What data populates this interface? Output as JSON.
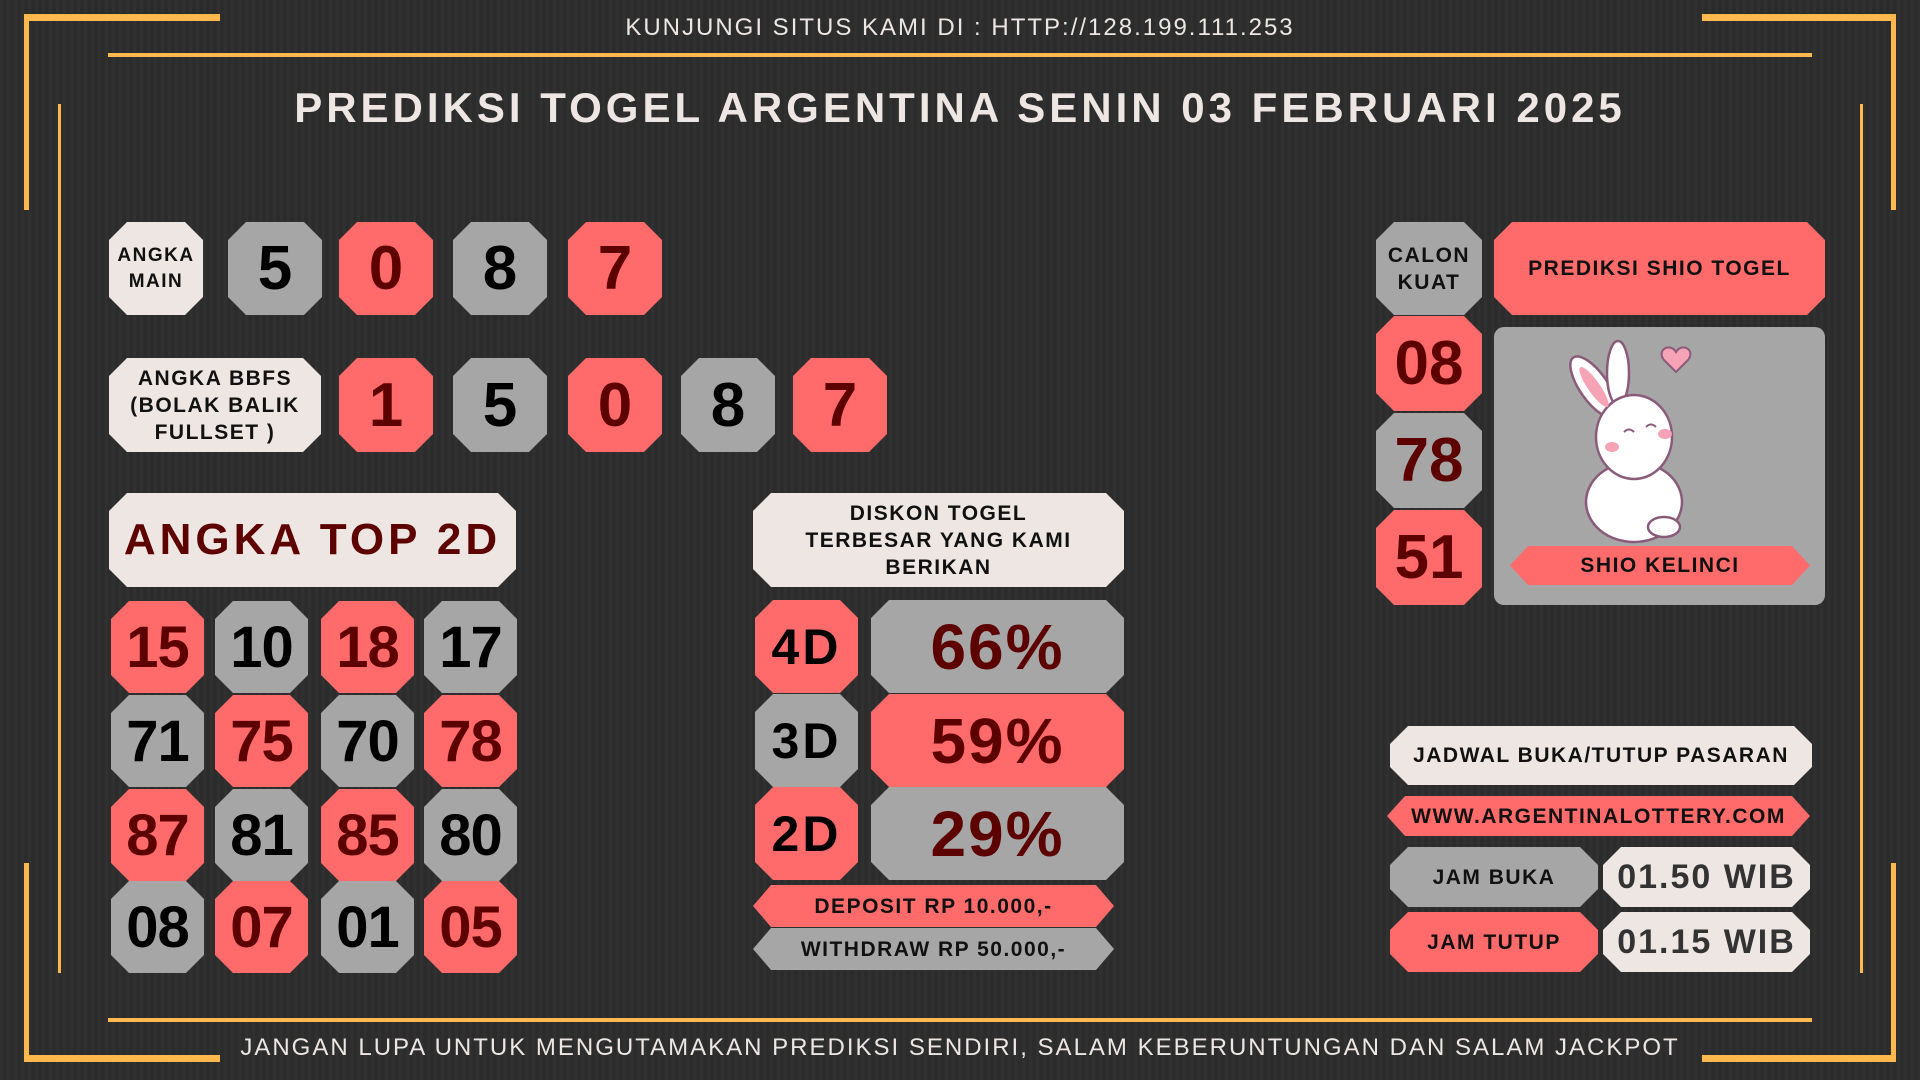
{
  "header": {
    "visit_text": "KUNJUNGI SITUS KAMI DI : HTTP://128.199.111.253",
    "title": "PREDIKSI TOGEL ARGENTINA SENIN 03 FEBRUARI 2025"
  },
  "angka_main": {
    "label": "ANGKA MAIN",
    "numbers": [
      {
        "value": "5",
        "color": "gray"
      },
      {
        "value": "0",
        "color": "red"
      },
      {
        "value": "8",
        "color": "gray"
      },
      {
        "value": "7",
        "color": "red"
      }
    ]
  },
  "angka_bbfs": {
    "label": "ANGKA BBFS (BOLAK BALIK FULLSET )",
    "numbers": [
      {
        "value": "1",
        "color": "red"
      },
      {
        "value": "5",
        "color": "gray"
      },
      {
        "value": "0",
        "color": "red"
      },
      {
        "value": "8",
        "color": "gray"
      },
      {
        "value": "7",
        "color": "red"
      }
    ]
  },
  "top_2d": {
    "title": "ANGKA TOP 2D",
    "rows": [
      [
        {
          "value": "15",
          "color": "red"
        },
        {
          "value": "10",
          "color": "gray"
        },
        {
          "value": "18",
          "color": "red"
        },
        {
          "value": "17",
          "color": "gray"
        }
      ],
      [
        {
          "value": "71",
          "color": "gray"
        },
        {
          "value": "75",
          "color": "red"
        },
        {
          "value": "70",
          "color": "gray"
        },
        {
          "value": "78",
          "color": "red"
        }
      ],
      [
        {
          "value": "87",
          "color": "red"
        },
        {
          "value": "81",
          "color": "gray"
        },
        {
          "value": "85",
          "color": "red"
        },
        {
          "value": "80",
          "color": "gray"
        }
      ],
      [
        {
          "value": "08",
          "color": "gray"
        },
        {
          "value": "07",
          "color": "red"
        },
        {
          "value": "01",
          "color": "gray"
        },
        {
          "value": "05",
          "color": "red"
        }
      ]
    ]
  },
  "diskon": {
    "title": "DISKON TOGEL TERBESAR YANG KAMI BERIKAN",
    "rows": [
      {
        "type": "4D",
        "value": "66%"
      },
      {
        "type": "3D",
        "value": "59%"
      },
      {
        "type": "2D",
        "value": "29%"
      }
    ],
    "deposit": "DEPOSIT RP 10.000,-",
    "withdraw": "WITHDRAW RP 50.000,-"
  },
  "calon_kuat": {
    "label": "CALON KUAT",
    "numbers": [
      "08",
      "78",
      "51"
    ]
  },
  "shio": {
    "title": "PREDIKSI SHIO TOGEL",
    "icon": "rabbit-illustration",
    "name": "SHIO KELINCI"
  },
  "jadwal": {
    "title": "JADWAL BUKA/TUTUP PASARAN",
    "website": "WWW.ARGENTINALOTTERY.COM",
    "buka_label": "JAM BUKA",
    "buka_value": "01.50 WIB",
    "tutup_label": "JAM TUTUP",
    "tutup_value": "01.15 WIB"
  },
  "footer": {
    "text": "JANGAN LUPA UNTUK MENGUTAMAKAN PREDIKSI SENDIRI, SALAM KEBERUNTUNGAN DAN SALAM JACKPOT"
  },
  "colors": {
    "red": "#ff6b6b",
    "gray": "#a6a6a6",
    "cream": "#ede6e3",
    "accent": "#ffb84d",
    "dark_red_text": "#5c0000",
    "background": "#2d2d2d"
  }
}
